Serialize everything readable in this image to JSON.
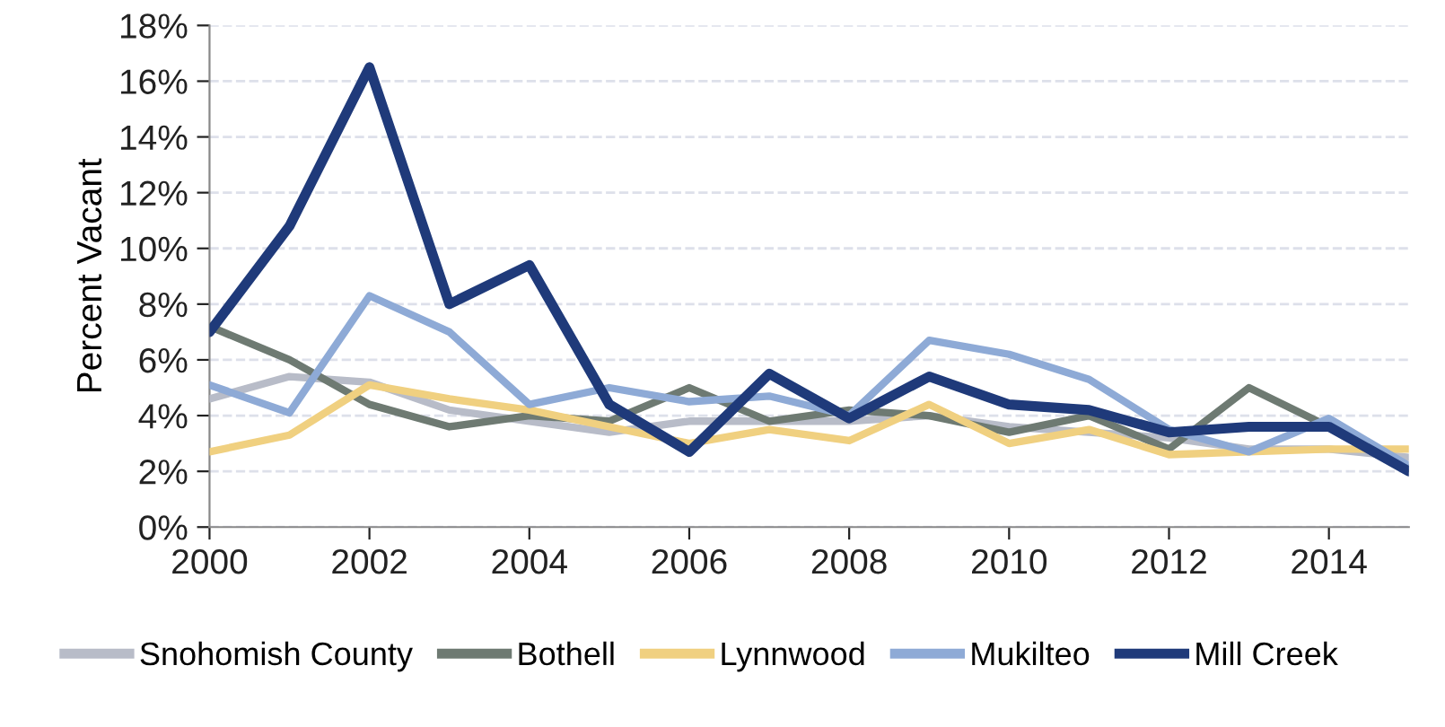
{
  "chart_data": {
    "type": "line",
    "ylabel": "Percent Vacant",
    "x": [
      2000,
      2001,
      2002,
      2003,
      2004,
      2005,
      2006,
      2007,
      2008,
      2009,
      2010,
      2011,
      2012,
      2013,
      2014,
      2015
    ],
    "series": [
      {
        "name": "Snohomish County",
        "color": "#b8bcc8",
        "values": [
          4.6,
          5.4,
          5.2,
          4.2,
          3.8,
          3.4,
          3.8,
          3.8,
          3.8,
          4.0,
          3.6,
          3.4,
          3.2,
          2.8,
          2.8,
          2.5
        ]
      },
      {
        "name": "Bothell",
        "color": "#6e7a72",
        "values": [
          7.2,
          6.0,
          4.4,
          3.6,
          4.0,
          3.8,
          5.0,
          3.8,
          4.2,
          4.0,
          3.4,
          4.0,
          2.8,
          5.0,
          3.6,
          2.1
        ]
      },
      {
        "name": "Lynnwood",
        "color": "#f0d080",
        "values": [
          2.7,
          3.3,
          5.1,
          4.6,
          4.2,
          3.6,
          3.0,
          3.5,
          3.1,
          4.4,
          3.0,
          3.5,
          2.6,
          2.7,
          2.8,
          2.8
        ]
      },
      {
        "name": "Mukilteo",
        "color": "#8eaad6",
        "values": [
          5.1,
          4.1,
          8.3,
          7.0,
          4.4,
          5.0,
          4.5,
          4.7,
          4.0,
          6.7,
          6.2,
          5.3,
          3.5,
          2.7,
          3.9,
          2.2
        ]
      },
      {
        "name": "Mill Creek",
        "color": "#1f3a7a",
        "values": [
          7.0,
          10.8,
          16.5,
          8.0,
          9.4,
          4.4,
          2.7,
          5.5,
          3.9,
          5.4,
          4.4,
          4.2,
          3.4,
          3.6,
          3.6,
          2.0
        ]
      }
    ],
    "xlim": [
      2000,
      2015
    ],
    "xticks": [
      2000,
      2002,
      2004,
      2006,
      2008,
      2010,
      2012,
      2014
    ],
    "ylim": [
      0,
      18
    ],
    "yticks": [
      {
        "value": 0,
        "label": "0%"
      },
      {
        "value": 2,
        "label": "2%"
      },
      {
        "value": 4,
        "label": "4%"
      },
      {
        "value": 6,
        "label": "6%"
      },
      {
        "value": 8,
        "label": "8%"
      },
      {
        "value": 10,
        "label": "10%"
      },
      {
        "value": 12,
        "label": "12%"
      },
      {
        "value": 14,
        "label": "14%"
      },
      {
        "value": 16,
        "label": "16%"
      },
      {
        "value": 18,
        "label": "18%"
      }
    ],
    "grid": "y",
    "legend": "bottom",
    "line_style": "solid",
    "marker": "none"
  }
}
